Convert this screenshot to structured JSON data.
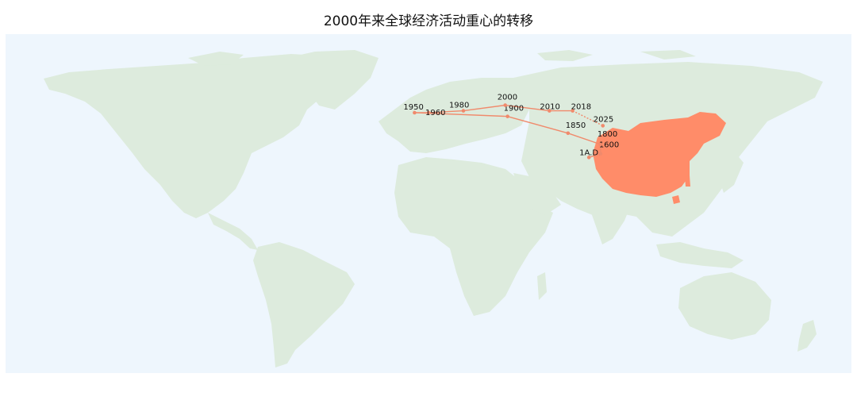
{
  "title": "2000年来全球经济活动重心的转移",
  "colors": {
    "ocean": "#eef6fd",
    "land": "#ddebdd",
    "highlight": "#ff8c69",
    "path": "#f08a6c"
  },
  "highlight_country": "China",
  "path_points": [
    {
      "label": "1A.D.",
      "lon": 69,
      "lat": 39
    },
    {
      "label": "1600",
      "lon": 74,
      "lat": 41
    },
    {
      "label": "1800",
      "lon": 74,
      "lat": 46
    },
    {
      "label": "1850",
      "lon": 60,
      "lat": 52
    },
    {
      "label": "1900",
      "lon": 34,
      "lat": 61
    },
    {
      "label": "1950",
      "lon": -6,
      "lat": 63
    },
    {
      "label": "1960",
      "lon": 0,
      "lat": 63
    },
    {
      "label": "1980",
      "lon": 15,
      "lat": 64
    },
    {
      "label": "2000",
      "lon": 33,
      "lat": 67
    },
    {
      "label": "2010",
      "lon": 52,
      "lat": 64
    },
    {
      "label": "2018",
      "lon": 62,
      "lat": 64
    },
    {
      "label": "2025",
      "lon": 75,
      "lat": 56,
      "projected": true
    }
  ]
}
